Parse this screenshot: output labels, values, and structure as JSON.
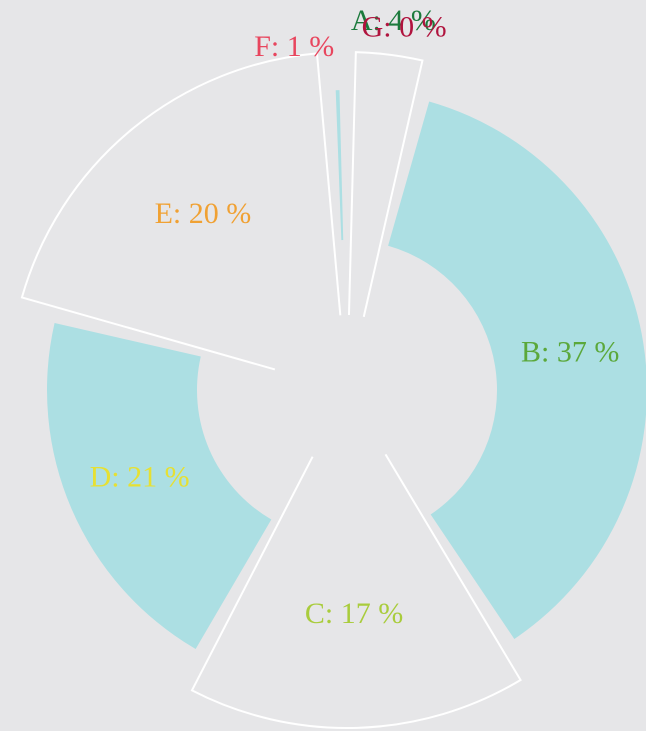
{
  "chart_data": {
    "type": "pie",
    "categories": [
      "A",
      "B",
      "C",
      "D",
      "E",
      "F",
      "G"
    ],
    "values": [
      4,
      37,
      17,
      21,
      20,
      1,
      0
    ],
    "value_labels": [
      "A: 4 %",
      "B: 37 %",
      "C: 17 %",
      "D: 21 %",
      "E: 20 %",
      "F: 1 %",
      "G: 0 %"
    ],
    "colors": [
      "#1b7a3c",
      "#5ba83b",
      "#a9cc3c",
      "#e6e033",
      "#f0a133",
      "#e8465e",
      "#b0143e"
    ],
    "fill": "#acdfe3"
  }
}
